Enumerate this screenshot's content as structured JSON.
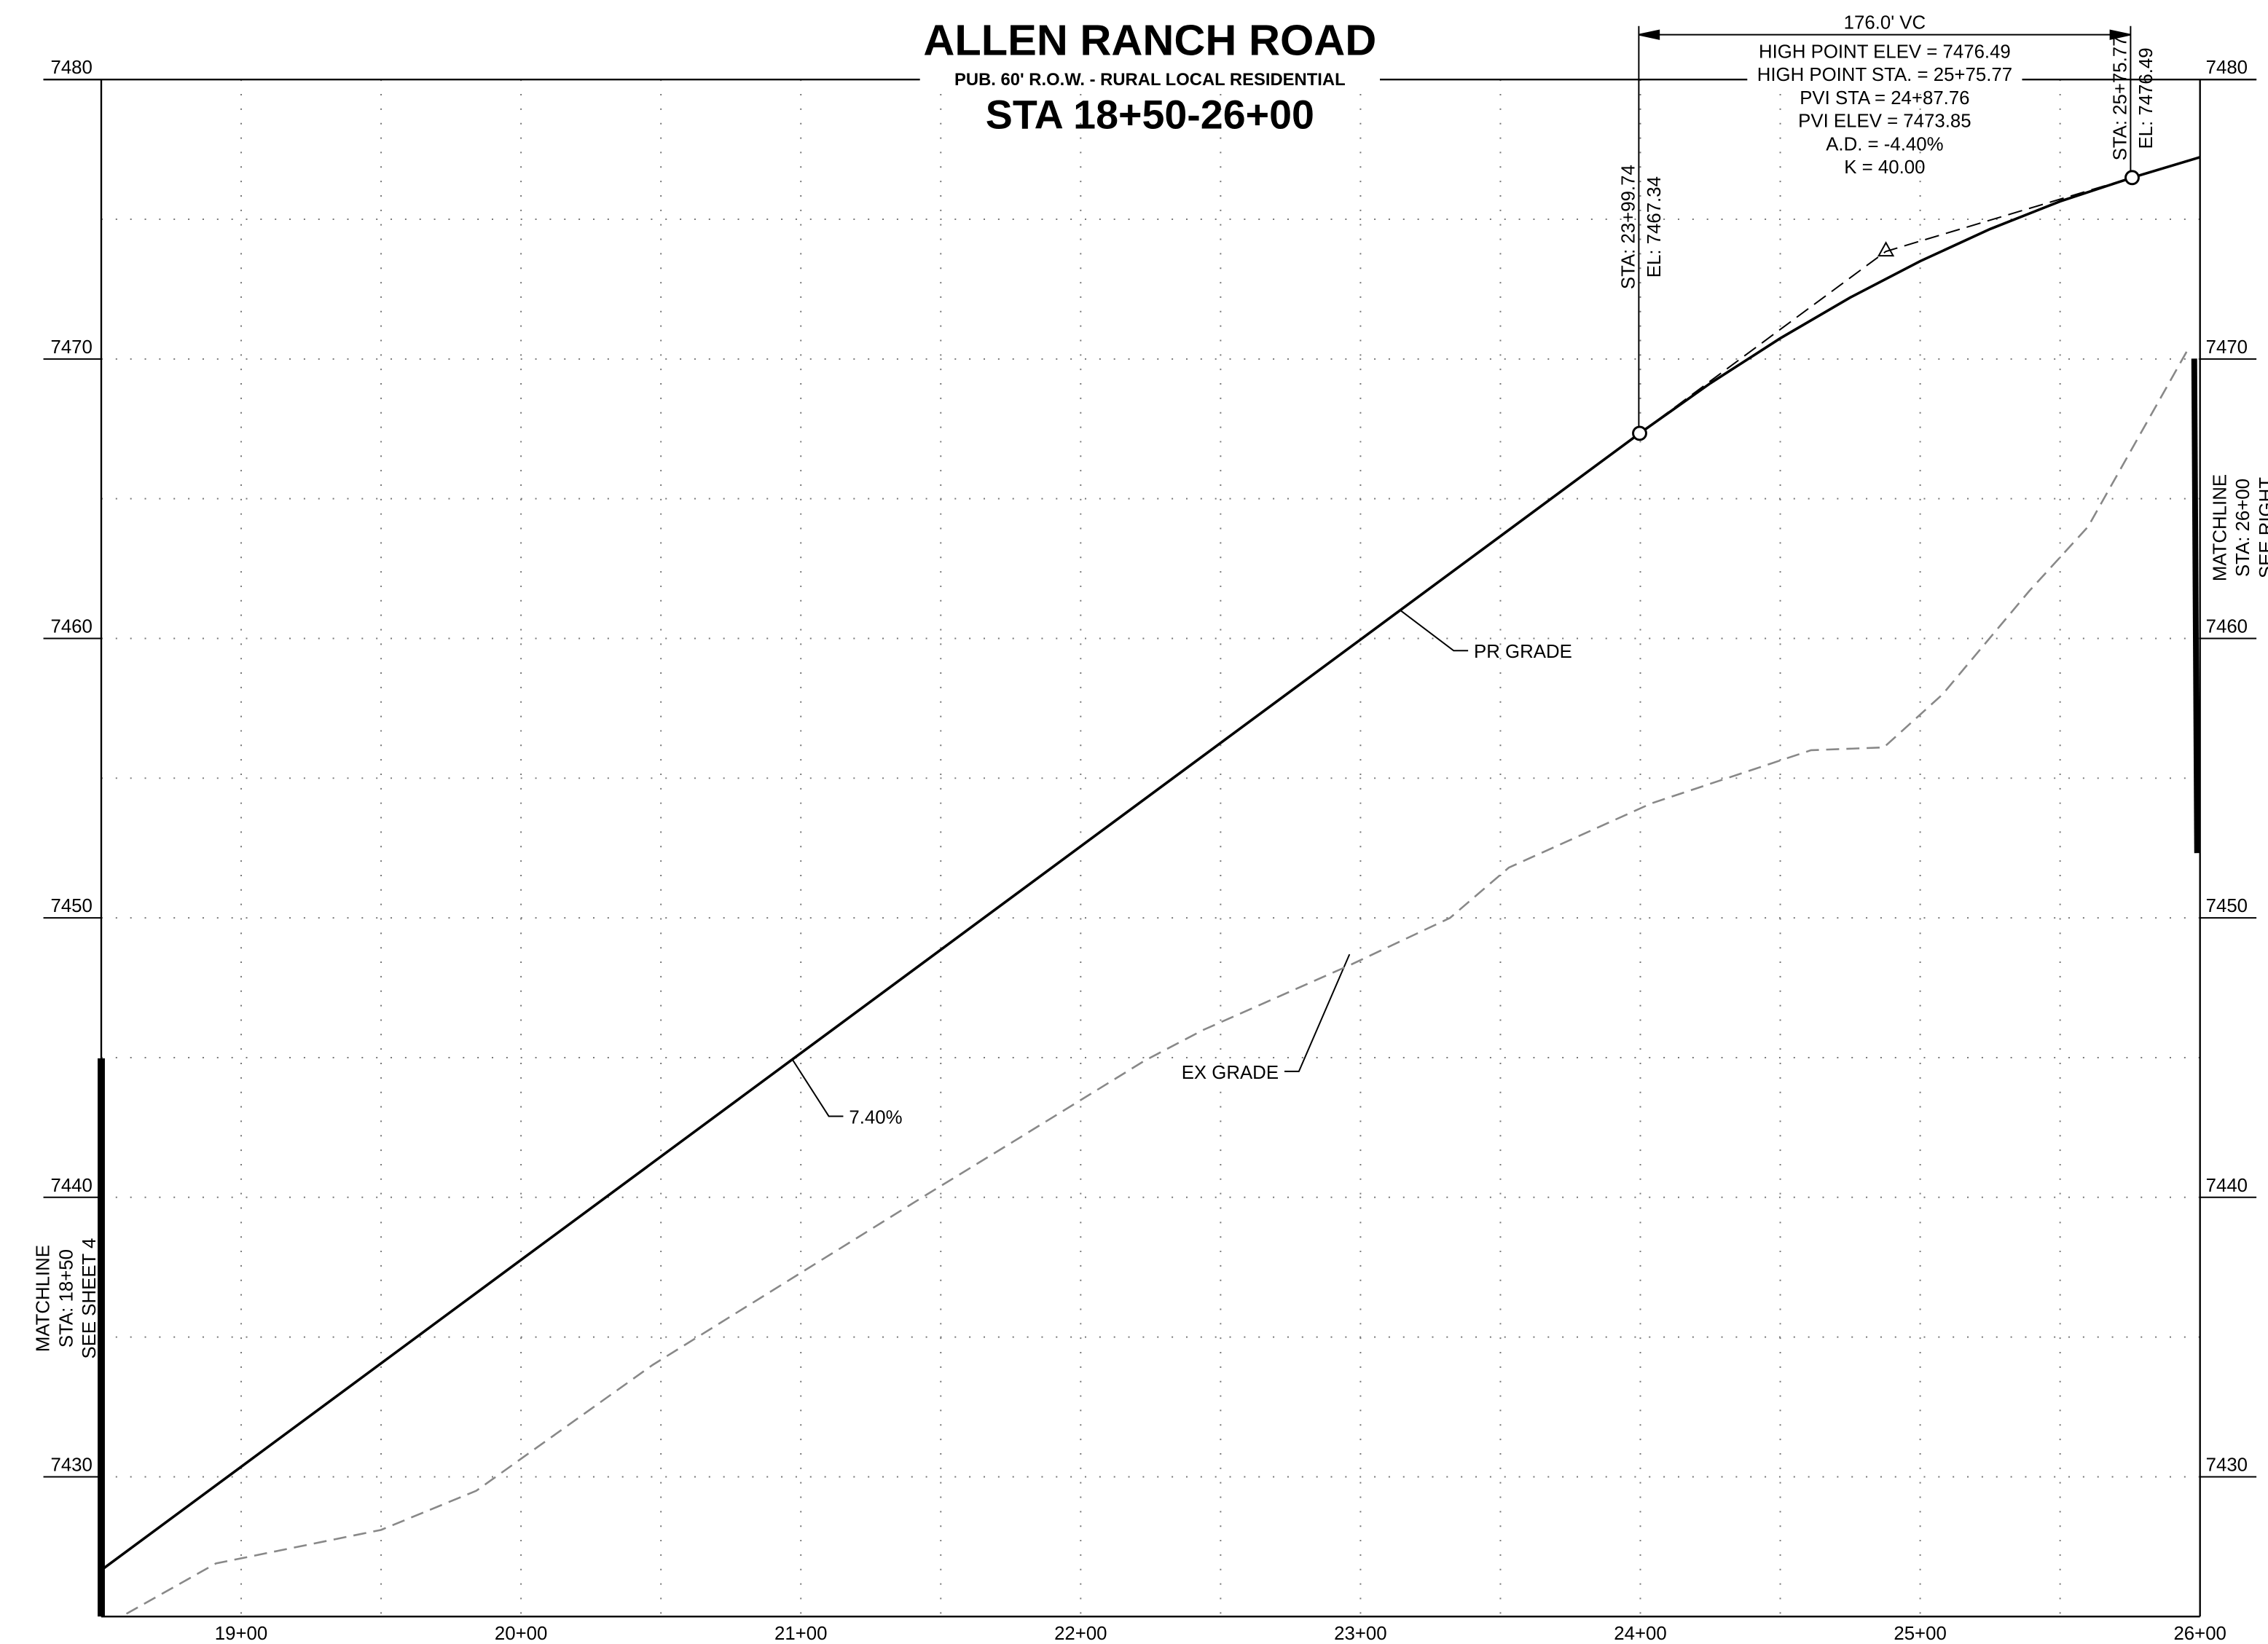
{
  "chart_data": {
    "type": "line",
    "title": "ALLEN RANCH ROAD",
    "subtitle": "PUB. 60' R.O.W. - RURAL LOCAL RESIDENTIAL",
    "station_range": "STA 18+50-26+00",
    "xlim": [
      1850,
      2600
    ],
    "xticks": [
      {
        "value": 1900,
        "label": "19+00"
      },
      {
        "value": 2000,
        "label": "20+00"
      },
      {
        "value": 2100,
        "label": "21+00"
      },
      {
        "value": 2200,
        "label": "22+00"
      },
      {
        "value": 2300,
        "label": "23+00"
      },
      {
        "value": 2400,
        "label": "24+00"
      },
      {
        "value": 2500,
        "label": "25+00"
      },
      {
        "value": 2600,
        "label": "26+00"
      }
    ],
    "ylim": [
      7425,
      7480
    ],
    "yticks": [
      7430,
      7440,
      7450,
      7460,
      7470,
      7480
    ],
    "grid": true,
    "series": [
      {
        "name": "PR GRADE",
        "color": "#000000",
        "x": [
          1850,
          1900,
          2000,
          2100,
          2200,
          2300,
          2399.74,
          2425,
          2450,
          2475,
          2500,
          2525,
          2550,
          2575.74,
          2600
        ],
        "values": [
          7426.66,
          7430.36,
          7437.76,
          7445.16,
          7452.56,
          7459.96,
          7467.34,
          7469.13,
          7470.74,
          7472.2,
          7473.5,
          7474.65,
          7475.64,
          7476.49,
          7477.22
        ]
      },
      {
        "name": "EX GRADE",
        "color": "#888888",
        "dashed": true,
        "x": [
          1859,
          1891,
          1950,
          1984,
          2047,
          2145,
          2176,
          2223,
          2244,
          2296,
          2332,
          2353,
          2404,
          2461,
          2487,
          2508,
          2539,
          2560,
          2596
        ],
        "values": [
          7425.1,
          7426.9,
          7428.1,
          7429.5,
          7434.0,
          7440.1,
          7442.0,
          7444.9,
          7446.0,
          7448.3,
          7450.0,
          7451.8,
          7454.1,
          7456.0,
          7456.1,
          7458.0,
          7461.7,
          7464.0,
          7470.4
        ]
      }
    ],
    "tangent": {
      "color": "#000000",
      "x": [
        2399.74,
        2487.76,
        2575.74
      ],
      "values": [
        7467.34,
        7473.85,
        7476.49
      ]
    },
    "annotations": {
      "grade": "7.40%",
      "vc_length": "176.0' VC",
      "vc_info": [
        "HIGH POINT ELEV = 7476.49",
        "HIGH POINT STA. = 25+75.77",
        "PVI STA = 24+87.76",
        "PVI ELEV = 7473.85",
        "A.D. = -4.40%",
        "K = 40.00"
      ],
      "pvc_station": "STA: 23+99.74",
      "pvc_elev": "EL: 7467.34",
      "hp_station": "STA: 25+75.77",
      "hp_elev": "EL: 7476.49",
      "matchline_left": [
        "MATCHLINE",
        "STA: 18+50",
        "SEE SHEET 4"
      ],
      "matchline_right": [
        "MATCHLINE",
        "STA: 26+00",
        "SEE RIGHT"
      ]
    }
  }
}
